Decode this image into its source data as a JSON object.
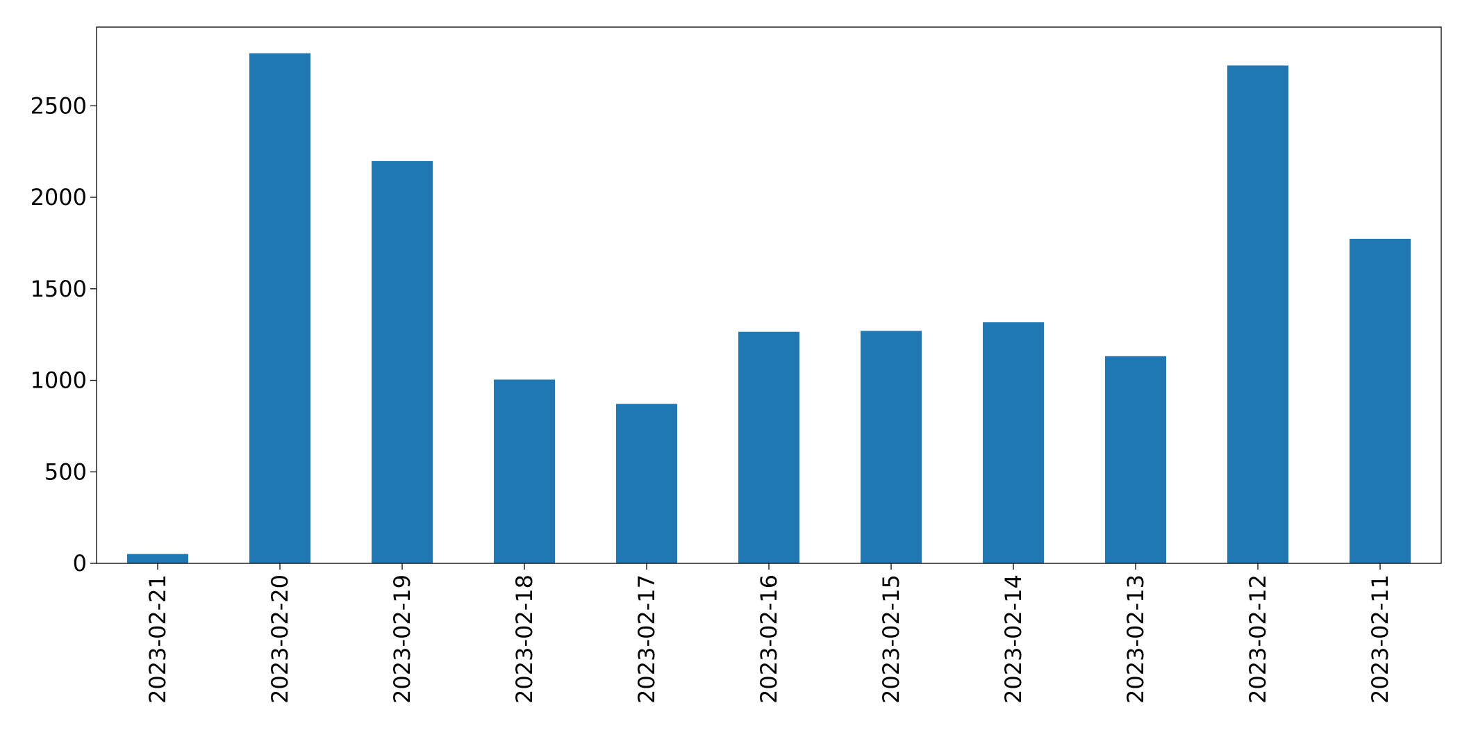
{
  "chart_data": {
    "type": "bar",
    "categories": [
      "2023-02-21",
      "2023-02-20",
      "2023-02-19",
      "2023-02-18",
      "2023-02-17",
      "2023-02-16",
      "2023-02-15",
      "2023-02-14",
      "2023-02-13",
      "2023-02-12",
      "2023-02-11"
    ],
    "values": [
      51,
      2787,
      2198,
      1004,
      871,
      1265,
      1270,
      1317,
      1132,
      2720,
      1773
    ],
    "color": "#1f77b4",
    "ylim": [
      0,
      2930
    ],
    "yticks": [
      0,
      500,
      1000,
      1500,
      2000,
      2500
    ],
    "grid": false
  }
}
